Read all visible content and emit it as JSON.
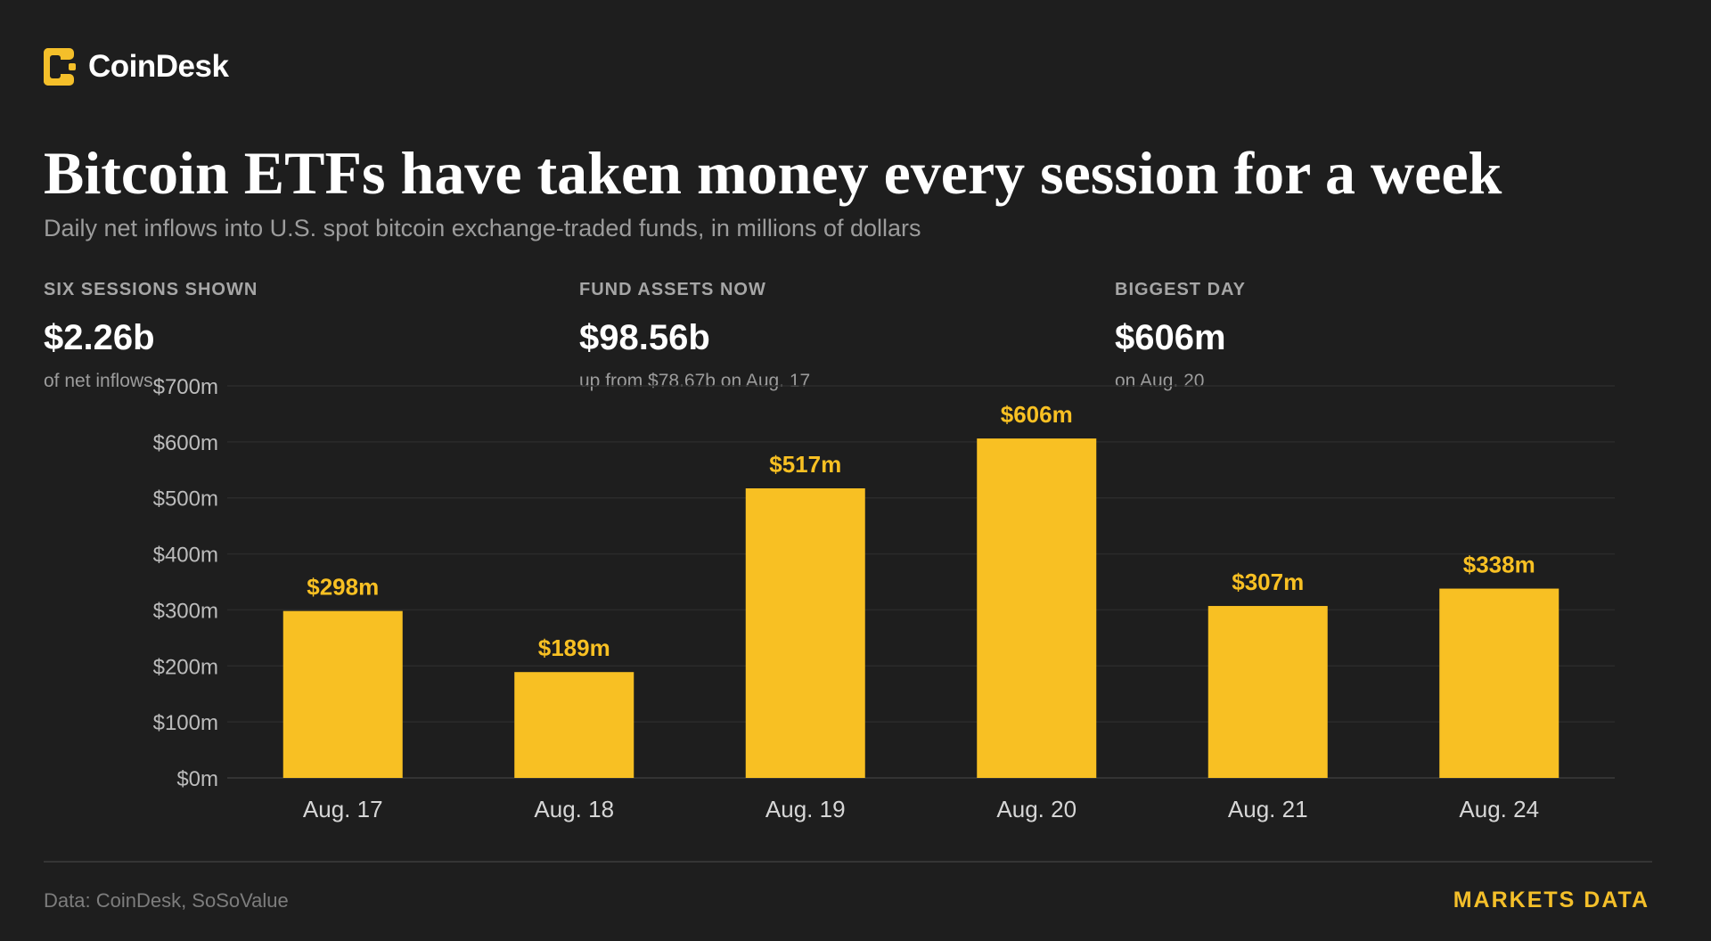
{
  "brand": {
    "name": "CoinDesk",
    "accent_color": "#f4bf2a",
    "logo_icon": "coindesk-bracket-logo-icon"
  },
  "header": {
    "title": "Bitcoin ETFs have taken money every session for a week",
    "subtitle": "Daily net inflows into U.S. spot bitcoin exchange-traded funds, in millions of dollars"
  },
  "stats": [
    {
      "label": "Six sessions shown",
      "value": "$2.26b",
      "note": "of net inflows"
    },
    {
      "label": "Fund assets now",
      "value": "$98.56b",
      "note": "up from $78.67b on Aug. 17"
    },
    {
      "label": "Biggest day",
      "value": "$606m",
      "note": "on Aug. 20"
    }
  ],
  "chart_data": {
    "type": "bar",
    "categories": [
      "Aug. 17",
      "Aug. 18",
      "Aug. 19",
      "Aug. 20",
      "Aug. 21",
      "Aug. 24"
    ],
    "values": [
      298,
      189,
      517,
      606,
      307,
      338
    ],
    "data_labels": [
      "$298m",
      "$189m",
      "$517m",
      "$606m",
      "$307m",
      "$338m"
    ],
    "ylim": [
      0,
      700
    ],
    "yticks": [
      0,
      100,
      200,
      300,
      400,
      500,
      600,
      700
    ],
    "ytick_labels": [
      "$0m",
      "$100m",
      "$200m",
      "$300m",
      "$400m",
      "$500m",
      "$600m",
      "$700m"
    ],
    "grid": true,
    "bar_color": "#f8c023",
    "title": "",
    "xlabel": "",
    "ylabel": ""
  },
  "footer": {
    "source": "Data: CoinDesk, SoSoValue",
    "tag": "MARKETS DATA"
  }
}
